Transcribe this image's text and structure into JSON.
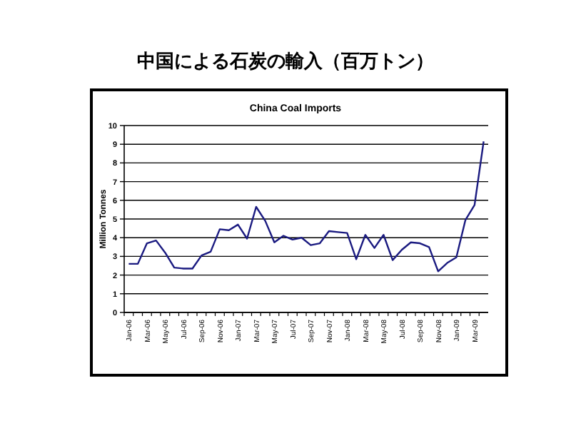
{
  "chart_data": {
    "type": "line",
    "title": "中国による石炭の輸入（百万トン）",
    "subtitle": "China Coal Imports",
    "ylabel": "Million Tonnes",
    "categories": [
      "Jan-06",
      null,
      "Mar-06",
      null,
      "May-06",
      null,
      "Jul-06",
      null,
      "Sep-06",
      null,
      "Nov-06",
      null,
      "Jan-07",
      null,
      "Mar-07",
      null,
      "May-07",
      null,
      "Jul-07",
      null,
      "Sep-07",
      null,
      "Nov-07",
      null,
      "Jan-08",
      null,
      "Mar-08",
      null,
      "May-08",
      null,
      "Jul-08",
      null,
      "Sep-08",
      null,
      "Nov-08",
      null,
      "Jan-09",
      null,
      "Mar-09",
      null
    ],
    "series": [
      {
        "color": "#1a1a80",
        "values": [
          2.6,
          2.6,
          3.7,
          3.85,
          3.2,
          2.4,
          2.35,
          2.35,
          3.05,
          3.25,
          4.45,
          4.4,
          4.7,
          3.95,
          5.65,
          4.9,
          3.75,
          4.1,
          3.9,
          4.0,
          3.6,
          3.7,
          4.35,
          4.3,
          4.25,
          2.85,
          4.15,
          3.45,
          4.15,
          2.8,
          3.35,
          3.75,
          3.7,
          3.5,
          2.2,
          2.65,
          2.95,
          4.95,
          5.75,
          9.15
        ]
      }
    ],
    "ylim": [
      0,
      10
    ],
    "yticks": [
      0,
      1,
      2,
      3,
      4,
      5,
      6,
      7,
      8,
      9,
      10
    ],
    "grid": "y",
    "marker": "none"
  }
}
